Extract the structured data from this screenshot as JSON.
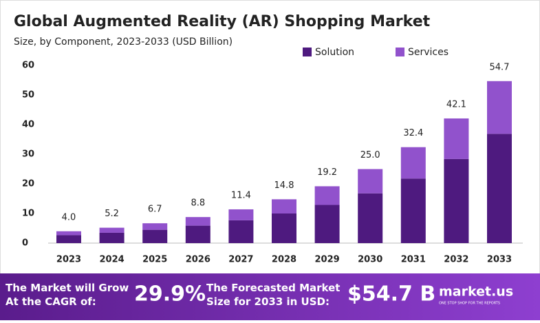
{
  "chart_data": {
    "type": "stacked_bar",
    "title": "Global Augmented Reality (AR) Shopping Market",
    "subtitle": "Size, by Component, 2023-2033 (USD Billion)",
    "categories": [
      "2023",
      "2024",
      "2025",
      "2026",
      "2027",
      "2028",
      "2029",
      "2030",
      "2031",
      "2032",
      "2033"
    ],
    "series": [
      {
        "name": "Solution",
        "color": "#4e1a7f",
        "values": [
          2.7,
          3.5,
          4.5,
          5.9,
          7.7,
          10.0,
          12.9,
          16.8,
          21.8,
          28.4,
          36.9
        ]
      },
      {
        "name": "Services",
        "color": "#9152cc",
        "values": [
          1.3,
          1.7,
          2.2,
          2.9,
          3.7,
          4.8,
          6.3,
          8.2,
          10.6,
          13.7,
          17.8
        ]
      }
    ],
    "totals": {
      "values": [
        4,
        5.2,
        6.7,
        8.8,
        11.4,
        14.8,
        19.2,
        25,
        32.4,
        42.1,
        54.7
      ],
      "value_labels": [
        "4.0",
        "5.2",
        "6.7",
        "8.8",
        "11.4",
        "14.8",
        "19.2",
        "25.0",
        "32.4",
        "42.1",
        "54.7"
      ]
    },
    "ylim": [
      0,
      60
    ],
    "yticks": [
      0,
      10,
      20,
      30,
      40,
      50,
      60
    ],
    "grid": false,
    "legend": "top-right"
  },
  "banner": {
    "cagr_text": "The Market will Grow At the CAGR of:",
    "cagr_value": "29.9%",
    "forecast_text": "The Forecasted Market Size for 2033 in USD:",
    "forecast_value": "$54.7 B",
    "brand": "market.us",
    "tagline": "ONE STOP SHOP FOR THE REPORTS"
  }
}
